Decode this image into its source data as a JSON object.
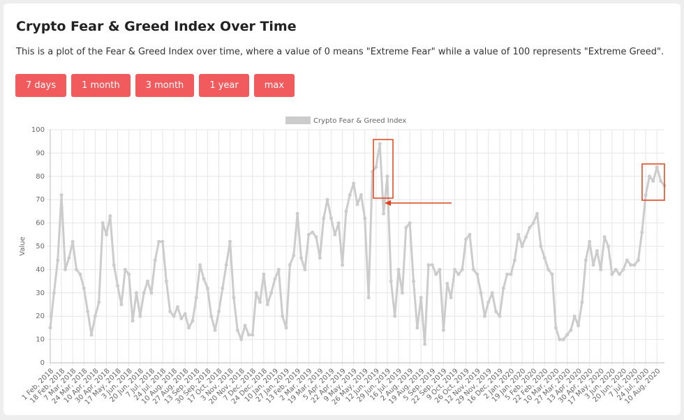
{
  "header": {
    "title": "Crypto Fear & Greed Index Over Time",
    "description": "This is a plot of the Fear & Greed Index over time, where a value of 0 means \"Extreme Fear\" while a value of 100 represents \"Extreme Greed\"."
  },
  "buttons": [
    "7 days",
    "1 month",
    "3 month",
    "1 year",
    "max"
  ],
  "chart_data": {
    "type": "line",
    "ylabel": "Value",
    "grid": true,
    "legend": "top",
    "ylim": [
      0,
      100
    ],
    "yticks": [
      0,
      10,
      20,
      30,
      40,
      50,
      60,
      70,
      80,
      90,
      100
    ],
    "categories": [
      "1 Feb, 2018",
      null,
      null,
      "18 Feb, 2018",
      null,
      null,
      "7 Mar, 2018",
      null,
      null,
      "24 Mar, 2018",
      null,
      null,
      "10 Apr, 2018",
      null,
      null,
      "30 Apr, 2018",
      null,
      null,
      "17 May, 2018",
      null,
      null,
      "3 Jun, 2018",
      null,
      null,
      "20 Jun, 2018",
      null,
      null,
      "7 Jul, 2018",
      null,
      null,
      "24 Jul, 2018",
      null,
      null,
      "10 Aug, 2018",
      null,
      null,
      "27 Aug, 2018",
      null,
      null,
      "13 Sep, 2018",
      null,
      null,
      "30 Sep, 2018",
      null,
      null,
      "17 Oct, 2018",
      null,
      null,
      "3 Nov, 2018",
      null,
      null,
      "20 Nov, 2018",
      null,
      null,
      "7 Dec, 2018",
      null,
      null,
      "24 Dec, 2018",
      null,
      null,
      "10 Jan, 2019",
      null,
      null,
      "27 Jan, 2019",
      null,
      null,
      "13 Feb, 2019",
      null,
      null,
      "2 Mar, 2019",
      null,
      null,
      "19 Mar, 2019",
      null,
      null,
      "5 Apr, 2019",
      null,
      null,
      "22 Apr, 2019",
      null,
      null,
      "9 May, 2019",
      null,
      null,
      "26 May, 2019",
      null,
      null,
      "12 Jun, 2019",
      null,
      null,
      "29 Jun, 2019",
      null,
      null,
      "16 Jul, 2019",
      null,
      null,
      "2 Aug, 2019",
      null,
      null,
      "19 Aug, 2019",
      null,
      null,
      "5 Sep, 2019",
      null,
      null,
      "22 Sep, 2019",
      null,
      null,
      "9 Oct, 2019",
      null,
      null,
      "26 Oct, 2019",
      null,
      null,
      "12 Nov, 2019",
      null,
      null,
      "29 Nov, 2019",
      null,
      null,
      "16 Dec, 2019",
      null,
      null,
      "2 Jan, 2020",
      null,
      null,
      "19 Jan, 2020",
      null,
      null,
      "5 Feb, 2020",
      null,
      null,
      "22 Feb, 2020",
      null,
      null,
      "10 Mar, 2020",
      null,
      null,
      "27 Mar, 2020",
      null,
      null,
      "13 Apr, 2020",
      null,
      null,
      "30 Apr, 2020",
      null,
      null,
      "17 May, 2020",
      null,
      null,
      "3 Jun, 2020",
      null,
      null,
      "20 Jun, 2020",
      null,
      null,
      "7 Jul, 2020",
      null,
      null,
      "24 Jul, 2020",
      null,
      null,
      "10 Aug, 2020",
      null,
      null
    ],
    "series": [
      {
        "name": "Crypto Fear & Greed Index",
        "color": "#cccccc",
        "values": [
          15,
          30,
          44,
          72,
          40,
          45,
          52,
          40,
          38,
          32,
          22,
          12,
          20,
          26,
          60,
          55,
          63,
          42,
          33,
          25,
          40,
          38,
          18,
          30,
          20,
          30,
          35,
          30,
          44,
          52,
          52,
          35,
          22,
          20,
          24,
          19,
          21,
          15,
          18,
          28,
          42,
          36,
          32,
          20,
          14,
          22,
          32,
          42,
          52,
          28,
          14,
          10,
          16,
          12,
          12,
          30,
          26,
          38,
          25,
          30,
          36,
          40,
          20,
          15,
          42,
          46,
          64,
          45,
          40,
          55,
          56,
          54,
          45,
          62,
          70,
          62,
          55,
          60,
          42,
          65,
          72,
          77,
          68,
          72,
          62,
          28,
          82,
          84,
          94,
          64,
          80,
          35,
          20,
          40,
          30,
          58,
          60,
          35,
          15,
          28,
          8,
          42,
          42,
          38,
          40,
          14,
          34,
          28,
          40,
          38,
          40,
          53,
          55,
          40,
          38,
          30,
          20,
          26,
          30,
          22,
          20,
          32,
          38,
          38,
          44,
          55,
          50,
          54,
          58,
          60,
          64,
          50,
          45,
          40,
          38,
          15,
          10,
          10,
          12,
          14,
          20,
          16,
          26,
          44,
          52,
          42,
          48,
          40,
          54,
          50,
          38,
          40,
          38,
          40,
          44,
          42,
          42,
          44,
          56,
          72,
          80,
          78,
          84,
          78,
          76
        ]
      }
    ]
  }
}
